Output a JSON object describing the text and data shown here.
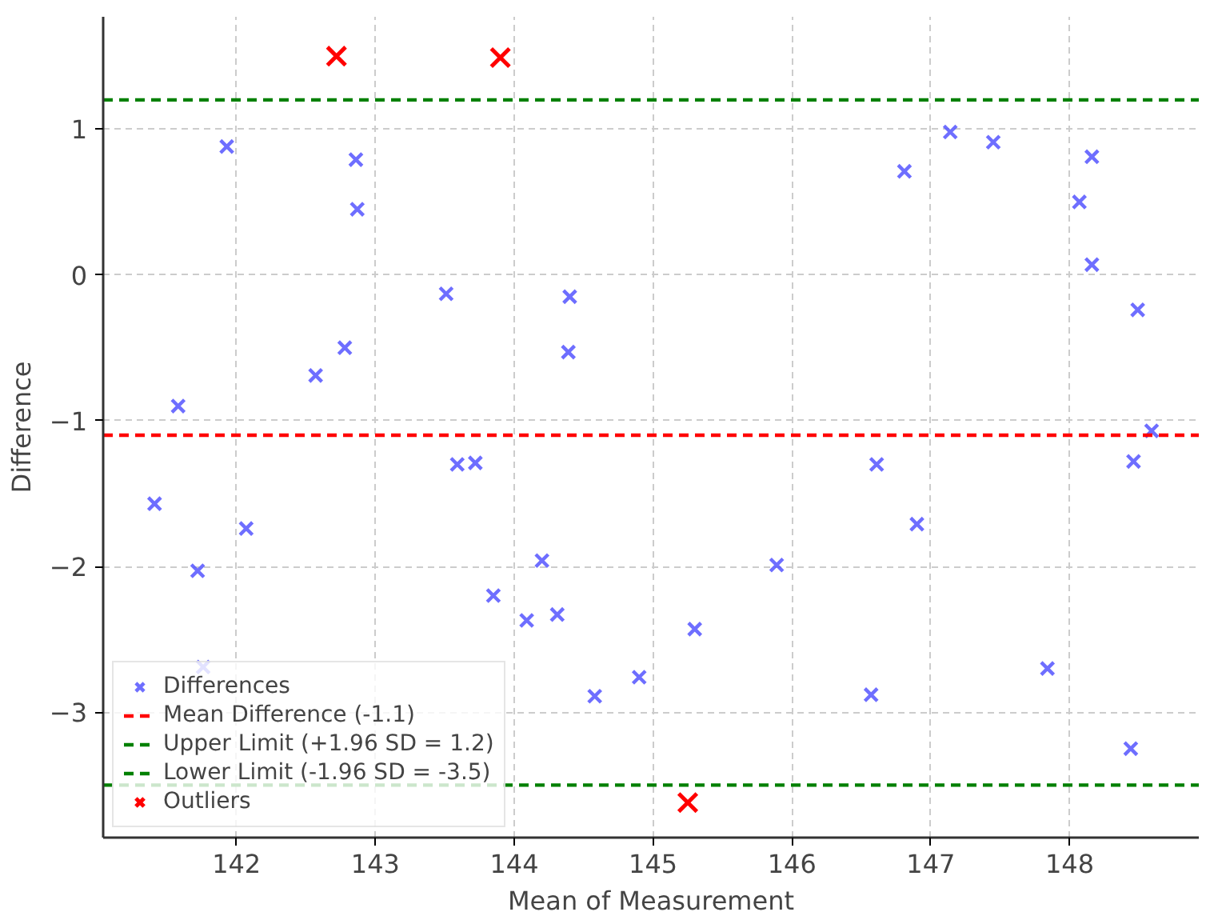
{
  "chart_data": {
    "type": "scatter",
    "xlabel": "Mean of Measurement",
    "ylabel": "Difference",
    "xlim": [
      141.04,
      148.93
    ],
    "ylim": [
      -3.86,
      1.77
    ],
    "xticks": [
      142,
      143,
      144,
      145,
      146,
      147,
      148
    ],
    "yticks": [
      -3,
      -2,
      -1,
      0,
      1
    ],
    "grid": true,
    "legend": "bottom left",
    "marker": "cross",
    "series": [
      {
        "name": "Differences",
        "color": "#5555ff",
        "x": [
          141.41,
          141.58,
          141.72,
          141.76,
          141.93,
          142.07,
          142.57,
          142.78,
          142.86,
          142.87,
          143.51,
          143.59,
          143.72,
          143.85,
          144.09,
          144.2,
          144.31,
          144.39,
          144.4,
          144.58,
          144.9,
          145.3,
          145.89,
          146.57,
          146.61,
          146.81,
          146.9,
          147.14,
          147.45,
          147.84,
          148.07,
          148.16,
          148.16,
          148.44,
          148.46,
          148.49,
          148.59
        ],
        "values": [
          -1.57,
          -0.9,
          -2.03,
          -2.69,
          0.88,
          -1.74,
          -0.69,
          -0.5,
          0.79,
          0.45,
          -0.13,
          -1.3,
          -1.29,
          -2.2,
          -2.37,
          -1.96,
          -2.33,
          -0.53,
          -0.15,
          -2.89,
          -2.76,
          -2.43,
          -1.99,
          -2.88,
          -1.3,
          0.71,
          -1.71,
          0.98,
          0.91,
          -2.7,
          0.5,
          0.81,
          0.07,
          -3.25,
          -1.28,
          -0.24,
          -1.07
        ]
      },
      {
        "name": "Outliers",
        "color": "#ff0000",
        "x": [
          142.72,
          143.9,
          145.25
        ],
        "values": [
          1.5,
          1.49,
          -3.62
        ]
      }
    ],
    "ref_lines": [
      {
        "axis": "y",
        "value": -1.1,
        "label": "Mean Difference (-1.1)",
        "color": "#ff0000",
        "line_style": "dashed"
      },
      {
        "axis": "y",
        "value": 1.2,
        "label": "Upper Limit (+1.96 SD = 1.2)",
        "color": "#008000",
        "line_style": "dashed"
      },
      {
        "axis": "y",
        "value": -3.5,
        "label": "Lower Limit (-1.96 SD = -3.5)",
        "color": "#008000",
        "line_style": "dashed"
      }
    ]
  }
}
